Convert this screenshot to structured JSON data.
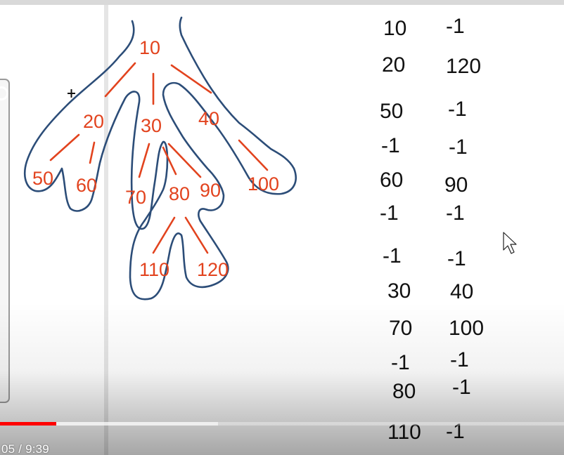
{
  "tree": {
    "nodes": [
      {
        "id": "n10",
        "label": "10"
      },
      {
        "id": "n20",
        "label": "20"
      },
      {
        "id": "n30",
        "label": "30"
      },
      {
        "id": "n40",
        "label": "40"
      },
      {
        "id": "n50",
        "label": "50"
      },
      {
        "id": "n60",
        "label": "60"
      },
      {
        "id": "n70",
        "label": "70"
      },
      {
        "id": "n80",
        "label": "80"
      },
      {
        "id": "n90",
        "label": "90"
      },
      {
        "id": "n100",
        "label": "100"
      },
      {
        "id": "n110",
        "label": "110"
      },
      {
        "id": "n120",
        "label": "120"
      }
    ]
  },
  "table": {
    "rows": [
      {
        "left": "10",
        "right": "-1"
      },
      {
        "left": "20",
        "right": "120"
      },
      {
        "left": "50",
        "right": "-1"
      },
      {
        "left": "-1",
        "right": "-1"
      },
      {
        "left": "60",
        "right": "90"
      },
      {
        "left": "-1",
        "right": "-1"
      },
      {
        "left": "-1",
        "right": "-1"
      },
      {
        "left": "30",
        "right": "40"
      },
      {
        "left": "70",
        "right": "100"
      },
      {
        "left": "-1",
        "right": "-1"
      },
      {
        "left": "80",
        "right": "-1"
      },
      {
        "left": "110",
        "right": "-1"
      }
    ]
  },
  "player": {
    "time_display": "05 / 9:39",
    "progress_fraction": 0.1,
    "colors": {
      "played": "#ff0000",
      "ink_red": "#e2431e",
      "ink_blue": "#2c4d78",
      "ink_black": "#111111"
    }
  },
  "icons": {
    "crosshair": "crosshair-icon",
    "cursor": "arrow-cursor-icon"
  }
}
